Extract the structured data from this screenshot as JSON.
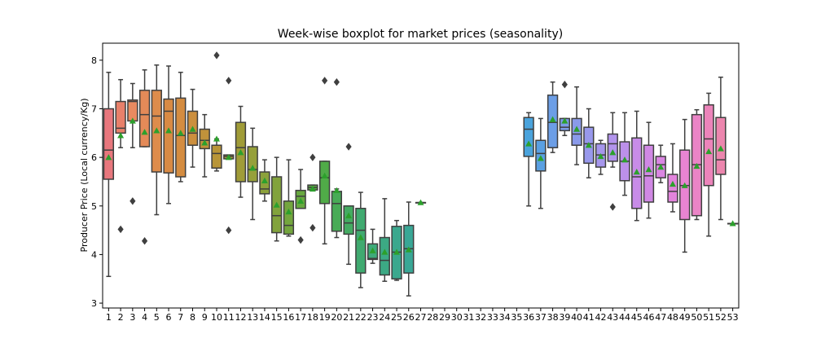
{
  "chart_data": {
    "type": "boxplot",
    "title": "Week-wise boxplot for market prices (seasonality)",
    "xlabel": "",
    "ylabel": "Producer Price (Local currency/Kg)",
    "ylim": [
      2.9,
      8.35
    ],
    "yticks": [
      3,
      4,
      5,
      6,
      7,
      8
    ],
    "grid": false,
    "mean_marker_color": "#2ca02c",
    "categories": [
      "1",
      "2",
      "3",
      "4",
      "5",
      "6",
      "7",
      "8",
      "9",
      "10",
      "11",
      "12",
      "13",
      "14",
      "15",
      "16",
      "17",
      "18",
      "19",
      "20",
      "21",
      "22",
      "23",
      "24",
      "25",
      "26",
      "27",
      "28",
      "29",
      "30",
      "31",
      "32",
      "33",
      "34",
      "35",
      "36",
      "37",
      "38",
      "39",
      "40",
      "41",
      "42",
      "43",
      "44",
      "45",
      "46",
      "47",
      "48",
      "49",
      "50",
      "51",
      "52",
      "53"
    ],
    "boxes": [
      {
        "week": "1",
        "min": 3.55,
        "q1": 5.55,
        "median": 6.15,
        "q3": 7.0,
        "max": 7.75,
        "mean": 6.0,
        "outliers": [],
        "color": "#e8777d"
      },
      {
        "week": "2",
        "min": 6.2,
        "q1": 6.5,
        "median": 6.6,
        "q3": 7.15,
        "max": 7.6,
        "mean": 6.45,
        "outliers": [
          4.52
        ],
        "color": "#e8806a"
      },
      {
        "week": "3",
        "min": 6.2,
        "q1": 6.75,
        "median": 7.15,
        "q3": 7.18,
        "max": 7.52,
        "mean": 6.75,
        "outliers": [
          5.1
        ],
        "color": "#e98a60"
      },
      {
        "week": "4",
        "min": 6.22,
        "q1": 6.22,
        "median": 6.88,
        "q3": 7.38,
        "max": 7.8,
        "mean": 6.52,
        "outliers": [
          4.28
        ],
        "color": "#e48a58"
      },
      {
        "week": "5",
        "min": 4.82,
        "q1": 5.7,
        "median": 6.85,
        "q3": 7.38,
        "max": 7.9,
        "mean": 6.55,
        "outliers": [],
        "color": "#dd8c4c"
      },
      {
        "week": "6",
        "min": 5.05,
        "q1": 5.68,
        "median": 6.95,
        "q3": 7.2,
        "max": 7.88,
        "mean": 6.55,
        "outliers": [],
        "color": "#d88a44"
      },
      {
        "week": "7",
        "min": 5.5,
        "q1": 5.6,
        "median": 6.45,
        "q3": 7.22,
        "max": 7.75,
        "mean": 6.5,
        "outliers": [],
        "color": "#d48c40"
      },
      {
        "week": "8",
        "min": 5.8,
        "q1": 6.25,
        "median": 6.5,
        "q3": 6.95,
        "max": 7.4,
        "mean": 6.58,
        "outliers": [],
        "color": "#cc8f3e"
      },
      {
        "week": "9",
        "min": 5.6,
        "q1": 6.18,
        "median": 6.35,
        "q3": 6.58,
        "max": 6.88,
        "mean": 6.3,
        "outliers": [],
        "color": "#c0923b"
      },
      {
        "week": "10",
        "min": 5.72,
        "q1": 5.78,
        "median": 6.08,
        "q3": 6.25,
        "max": 6.38,
        "mean": 6.38,
        "outliers": [
          8.1
        ],
        "color": "#b89538"
      },
      {
        "week": "11",
        "min": 5.97,
        "q1": 5.97,
        "median": 6.02,
        "q3": 6.05,
        "max": 6.05,
        "mean": 6.0,
        "outliers": [
          7.58,
          4.5
        ],
        "color": "#a89a38"
      },
      {
        "week": "12",
        "min": 5.18,
        "q1": 5.5,
        "median": 6.2,
        "q3": 6.72,
        "max": 7.05,
        "mean": 6.1,
        "outliers": [],
        "color": "#a09c38"
      },
      {
        "week": "13",
        "min": 4.72,
        "q1": 5.5,
        "median": 5.75,
        "q3": 6.22,
        "max": 6.6,
        "mean": 5.78,
        "outliers": [],
        "color": "#96a03a"
      },
      {
        "week": "14",
        "min": 5.1,
        "q1": 5.25,
        "median": 5.35,
        "q3": 5.7,
        "max": 5.95,
        "mean": 5.52,
        "outliers": [],
        "color": "#8ca13b"
      },
      {
        "week": "15",
        "min": 4.28,
        "q1": 4.45,
        "median": 4.8,
        "q3": 5.6,
        "max": 6.0,
        "mean": 5.02,
        "outliers": [],
        "color": "#82a33c"
      },
      {
        "week": "16",
        "min": 4.38,
        "q1": 4.42,
        "median": 4.6,
        "q3": 5.1,
        "max": 5.95,
        "mean": 4.88,
        "outliers": [],
        "color": "#74a63e"
      },
      {
        "week": "17",
        "min": 4.95,
        "q1": 4.95,
        "median": 5.2,
        "q3": 5.32,
        "max": 5.75,
        "mean": 5.1,
        "outliers": [
          4.3
        ],
        "color": "#68a840"
      },
      {
        "week": "18",
        "min": 5.33,
        "q1": 5.33,
        "median": 5.38,
        "q3": 5.43,
        "max": 5.43,
        "mean": 5.35,
        "outliers": [
          6.0,
          4.55
        ],
        "color": "#5caa44"
      },
      {
        "week": "19",
        "min": 4.22,
        "q1": 5.05,
        "median": 5.58,
        "q3": 5.92,
        "max": 5.92,
        "mean": 5.62,
        "outliers": [
          7.58
        ],
        "color": "#50ab48"
      },
      {
        "week": "20",
        "min": 4.35,
        "q1": 4.48,
        "median": 5.05,
        "q3": 5.3,
        "max": 5.35,
        "mean": 5.32,
        "outliers": [
          7.55
        ],
        "color": "#48ab56"
      },
      {
        "week": "21",
        "min": 3.8,
        "q1": 4.42,
        "median": 4.65,
        "q3": 5.0,
        "max": 5.0,
        "mean": 4.8,
        "outliers": [
          6.22
        ],
        "color": "#44ab62"
      },
      {
        "week": "22",
        "min": 3.32,
        "q1": 3.62,
        "median": 4.5,
        "q3": 4.95,
        "max": 5.28,
        "mean": 4.35,
        "outliers": [],
        "color": "#40aa70"
      },
      {
        "week": "23",
        "min": 3.82,
        "q1": 3.9,
        "median": 3.92,
        "q3": 4.22,
        "max": 4.52,
        "mean": 4.08,
        "outliers": [],
        "color": "#3eaa7a"
      },
      {
        "week": "24",
        "min": 3.45,
        "q1": 3.58,
        "median": 3.88,
        "q3": 4.35,
        "max": 5.15,
        "mean": 4.05,
        "outliers": [],
        "color": "#3ca984"
      },
      {
        "week": "25",
        "min": 3.47,
        "q1": 3.5,
        "median": 4.05,
        "q3": 4.58,
        "max": 4.7,
        "mean": 4.05,
        "outliers": [],
        "color": "#3aa88e"
      },
      {
        "week": "26",
        "min": 3.15,
        "q1": 3.62,
        "median": 4.12,
        "q3": 4.6,
        "max": 5.08,
        "mean": 4.1,
        "outliers": [],
        "color": "#39a796"
      },
      {
        "week": "27",
        "min": 5.07,
        "q1": 5.07,
        "median": 5.07,
        "q3": 5.07,
        "max": 5.07,
        "mean": 5.07,
        "outliers": [],
        "color": "#38a69e"
      },
      {
        "week": "36",
        "min": 5.0,
        "q1": 6.02,
        "median": 6.58,
        "q3": 6.82,
        "max": 6.92,
        "mean": 6.28,
        "outliers": [],
        "color": "#4aa3dc"
      },
      {
        "week": "37",
        "min": 4.95,
        "q1": 5.72,
        "median": 6.08,
        "q3": 6.35,
        "max": 6.8,
        "mean": 5.98,
        "outliers": [],
        "color": "#5aa0e2"
      },
      {
        "week": "38",
        "min": 6.1,
        "q1": 6.2,
        "median": 6.72,
        "q3": 7.28,
        "max": 7.55,
        "mean": 6.78,
        "outliers": [],
        "color": "#6c9ee6"
      },
      {
        "week": "39",
        "min": 6.45,
        "q1": 6.55,
        "median": 6.62,
        "q3": 6.8,
        "max": 6.8,
        "mean": 6.75,
        "outliers": [
          7.5
        ],
        "color": "#7c9ce8"
      },
      {
        "week": "40",
        "min": 5.85,
        "q1": 6.25,
        "median": 6.48,
        "q3": 6.8,
        "max": 7.45,
        "mean": 6.58,
        "outliers": [],
        "color": "#8a9aea"
      },
      {
        "week": "41",
        "min": 5.58,
        "q1": 5.88,
        "median": 6.28,
        "q3": 6.62,
        "max": 7.0,
        "mean": 6.25,
        "outliers": [],
        "color": "#9898ec"
      },
      {
        "week": "42",
        "min": 5.65,
        "q1": 5.8,
        "median": 6.05,
        "q3": 6.28,
        "max": 6.35,
        "mean": 6.02,
        "outliers": [],
        "color": "#a696ec"
      },
      {
        "week": "43",
        "min": 5.8,
        "q1": 5.92,
        "median": 6.28,
        "q3": 6.48,
        "max": 6.92,
        "mean": 6.1,
        "outliers": [
          4.98
        ],
        "color": "#b294ec"
      },
      {
        "week": "44",
        "min": 5.22,
        "q1": 5.52,
        "median": 5.92,
        "q3": 6.32,
        "max": 6.92,
        "mean": 5.95,
        "outliers": [],
        "color": "#bc90ea"
      },
      {
        "week": "45",
        "min": 4.7,
        "q1": 4.95,
        "median": 5.6,
        "q3": 6.4,
        "max": 6.95,
        "mean": 5.7,
        "outliers": [],
        "color": "#c88ce8"
      },
      {
        "week": "46",
        "min": 4.75,
        "q1": 5.08,
        "median": 5.62,
        "q3": 6.25,
        "max": 6.72,
        "mean": 5.75,
        "outliers": [],
        "color": "#d088e4"
      },
      {
        "week": "47",
        "min": 5.48,
        "q1": 5.58,
        "median": 5.85,
        "q3": 6.02,
        "max": 6.25,
        "mean": 5.8,
        "outliers": [],
        "color": "#da86e2"
      },
      {
        "week": "48",
        "min": 4.88,
        "q1": 5.08,
        "median": 5.3,
        "q3": 5.65,
        "max": 6.28,
        "mean": 5.45,
        "outliers": [],
        "color": "#e284dc"
      },
      {
        "week": "49",
        "min": 4.05,
        "q1": 4.72,
        "median": 5.42,
        "q3": 6.15,
        "max": 6.78,
        "mean": 5.42,
        "outliers": [],
        "color": "#e884d2"
      },
      {
        "week": "50",
        "min": 4.72,
        "q1": 4.8,
        "median": 5.85,
        "q3": 6.88,
        "max": 6.98,
        "mean": 5.82,
        "outliers": [],
        "color": "#ea84c6"
      },
      {
        "week": "51",
        "min": 4.38,
        "q1": 5.42,
        "median": 6.38,
        "q3": 7.08,
        "max": 7.32,
        "mean": 6.12,
        "outliers": [],
        "color": "#ec84ba"
      },
      {
        "week": "52",
        "min": 4.72,
        "q1": 5.65,
        "median": 5.95,
        "q3": 6.82,
        "max": 7.65,
        "mean": 6.18,
        "outliers": [],
        "color": "#ec86ae"
      },
      {
        "week": "53",
        "min": 4.64,
        "q1": 4.64,
        "median": 4.64,
        "q3": 4.64,
        "max": 4.64,
        "mean": 4.64,
        "outliers": [],
        "color": "#ea88a4"
      }
    ]
  }
}
